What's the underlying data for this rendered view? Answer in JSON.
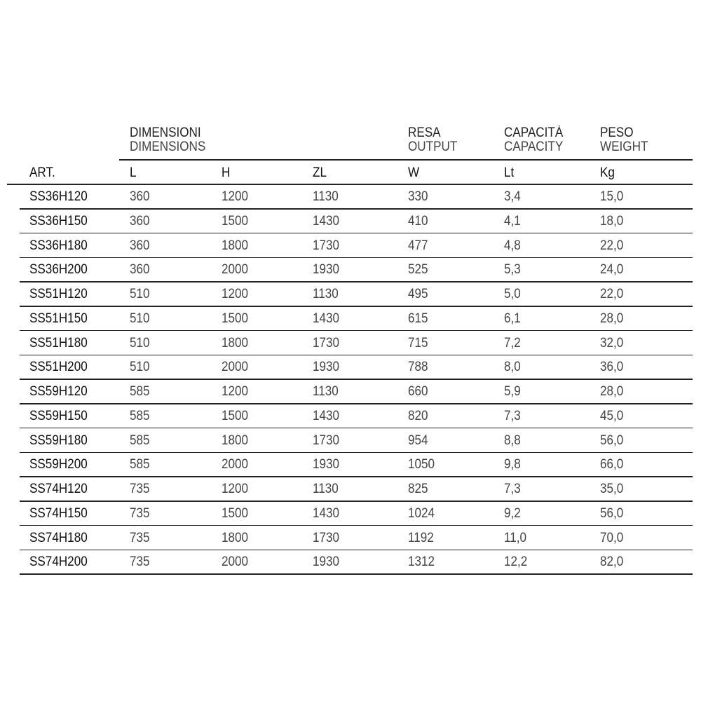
{
  "groups": [
    {
      "it": "DIMENSIONI",
      "en": "DIMENSIONS"
    },
    {
      "it": "RESA",
      "en": "OUTPUT"
    },
    {
      "it": "CAPACITÀ",
      "en": "CAPACITY"
    },
    {
      "it": "PESO",
      "en": "WEIGHT"
    }
  ],
  "columns": [
    "ART.",
    "L",
    "H",
    "ZL",
    "W",
    "Lt",
    "Kg"
  ],
  "rows": [
    [
      "SS36H120",
      "360",
      "1200",
      "1130",
      "330",
      "3,4",
      "15,0"
    ],
    [
      "SS36H150",
      "360",
      "1500",
      "1430",
      "410",
      "4,1",
      "18,0"
    ],
    [
      "SS36H180",
      "360",
      "1800",
      "1730",
      "477",
      "4,8",
      "22,0"
    ],
    [
      "SS36H200",
      "360",
      "2000",
      "1930",
      "525",
      "5,3",
      "24,0"
    ],
    [
      "SS51H120",
      "510",
      "1200",
      "1130",
      "495",
      "5,0",
      "22,0"
    ],
    [
      "SS51H150",
      "510",
      "1500",
      "1430",
      "615",
      "6,1",
      "28,0"
    ],
    [
      "SS51H180",
      "510",
      "1800",
      "1730",
      "715",
      "7,2",
      "32,0"
    ],
    [
      "SS51H200",
      "510",
      "2000",
      "1930",
      "788",
      "8,0",
      "36,0"
    ],
    [
      "SS59H120",
      "585",
      "1200",
      "1130",
      "660",
      "5,9",
      "28,0"
    ],
    [
      "SS59H150",
      "585",
      "1500",
      "1430",
      "820",
      "7,3",
      "45,0"
    ],
    [
      "SS59H180",
      "585",
      "1800",
      "1730",
      "954",
      "8,8",
      "56,0"
    ],
    [
      "SS59H200",
      "585",
      "2000",
      "1930",
      "1050",
      "9,8",
      "66,0"
    ],
    [
      "SS74H120",
      "735",
      "1200",
      "1130",
      "825",
      "7,3",
      "35,0"
    ],
    [
      "SS74H150",
      "735",
      "1500",
      "1430",
      "1024",
      "9,2",
      "56,0"
    ],
    [
      "SS74H180",
      "735",
      "1800",
      "1730",
      "1192",
      "11,0",
      "70,0"
    ],
    [
      "SS74H200",
      "735",
      "2000",
      "1930",
      "1312",
      "12,2",
      "82,0"
    ]
  ]
}
